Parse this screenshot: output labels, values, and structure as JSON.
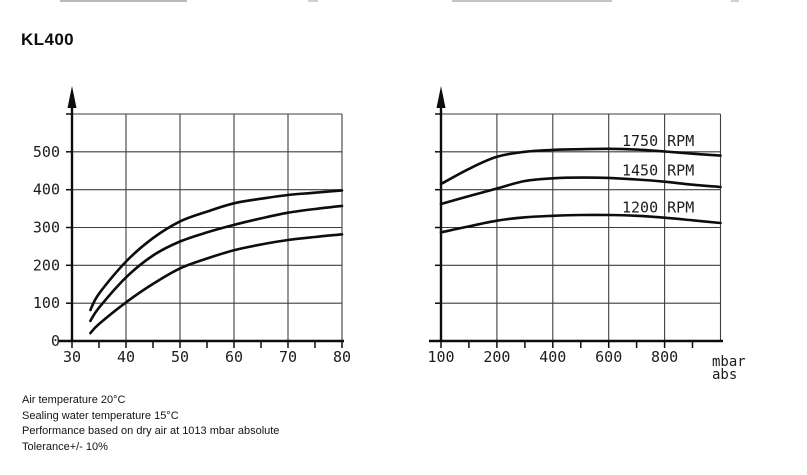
{
  "title": "KL400",
  "notes": [
    "Air temperature 20°C",
    "Sealing water temperature 15°C",
    "Performance based on dry air at 1013 mbar absolute",
    "Tolerance+/- 10%"
  ],
  "colors": {
    "background": "#ffffff",
    "curve": "#0d0d0d",
    "grid": "#3f3f3f",
    "axis": "#0d0d0d",
    "text": "#1c1c1c"
  },
  "chart_data": [
    {
      "id": "left-plot-capacity-vs-vacuum",
      "type": "line",
      "grid": true,
      "x_axis": {
        "scale": "linear",
        "range": [
          30,
          80
        ],
        "tick_labels": [
          "30",
          "40",
          "50",
          "60",
          "70",
          "80"
        ],
        "tick_values": [
          30,
          40,
          50,
          60,
          70,
          80
        ],
        "minor_tick_values": [
          35,
          45,
          55,
          65,
          75
        ],
        "gridline_values": [
          40,
          50,
          60,
          70,
          80
        ]
      },
      "y_axis": {
        "range": [
          0,
          600
        ],
        "tick_labels": [
          "0",
          "100",
          "200",
          "300",
          "400",
          "500"
        ],
        "tick_values": [
          0,
          100,
          200,
          300,
          400,
          500
        ],
        "gridline_values": [
          100,
          200,
          300,
          400,
          500,
          600
        ]
      },
      "series": [
        {
          "name": "upper-curve",
          "label": "",
          "points": [
            [
              33.4,
              82
            ],
            [
              35,
              125
            ],
            [
              40,
              210
            ],
            [
              45,
              272
            ],
            [
              50,
              316
            ],
            [
              55,
              342
            ],
            [
              60,
              364
            ],
            [
              65,
              376
            ],
            [
              70,
              386
            ],
            [
              75,
              392
            ],
            [
              80,
              398
            ]
          ]
        },
        {
          "name": "middle-curve",
          "label": "",
          "points": [
            [
              33.4,
              53
            ],
            [
              35,
              88
            ],
            [
              40,
              168
            ],
            [
              45,
              226
            ],
            [
              50,
              263
            ],
            [
              55,
              287
            ],
            [
              60,
              307
            ],
            [
              65,
              324
            ],
            [
              70,
              339
            ],
            [
              75,
              349
            ],
            [
              80,
              357
            ]
          ]
        },
        {
          "name": "lower-curve",
          "label": "",
          "points": [
            [
              33.4,
              21
            ],
            [
              35,
              45
            ],
            [
              40,
              102
            ],
            [
              45,
              151
            ],
            [
              50,
              192
            ],
            [
              55,
              218
            ],
            [
              60,
              240
            ],
            [
              65,
              255
            ],
            [
              70,
              267
            ],
            [
              75,
              275
            ],
            [
              80,
              282
            ]
          ]
        }
      ]
    },
    {
      "id": "right-plot-capacity-vs-absolute-pressure",
      "type": "line",
      "grid": true,
      "x_axis": {
        "scale": "compressed (100-200 full step, 200-1000 half step)",
        "range": [
          100,
          1000
        ],
        "tick_labels": [
          "100",
          "200",
          "400",
          "600",
          "800"
        ],
        "tick_values": [
          100,
          200,
          400,
          600,
          800
        ],
        "minor_tick_values": [
          150,
          300,
          500,
          700,
          900
        ],
        "gridline_values": [
          200,
          400,
          600,
          800,
          1000
        ],
        "unit_label_lines": [
          "mbar",
          "abs"
        ]
      },
      "y_axis": {
        "range": [
          0,
          600
        ],
        "tick_labels": [],
        "tick_values": [],
        "gridline_values": [
          100,
          200,
          300,
          400,
          500,
          600
        ]
      },
      "series": [
        {
          "name": "1750-rpm",
          "label": "1750 RPM",
          "points": [
            [
              100,
              415
            ],
            [
              150,
              455
            ],
            [
              200,
              487
            ],
            [
              300,
              500
            ],
            [
              400,
              505
            ],
            [
              500,
              507
            ],
            [
              600,
              508
            ],
            [
              700,
              506
            ],
            [
              800,
              501
            ],
            [
              900,
              495
            ],
            [
              1000,
              490
            ]
          ]
        },
        {
          "name": "1450-rpm",
          "label": "1450 RPM",
          "points": [
            [
              100,
              362
            ],
            [
              150,
              383
            ],
            [
              200,
              403
            ],
            [
              300,
              423
            ],
            [
              400,
              430
            ],
            [
              500,
              432
            ],
            [
              600,
              431
            ],
            [
              700,
              427
            ],
            [
              800,
              421
            ],
            [
              900,
              413
            ],
            [
              1000,
              407
            ]
          ]
        },
        {
          "name": "1200-rpm",
          "label": "1200 RPM",
          "points": [
            [
              100,
              287
            ],
            [
              150,
              303
            ],
            [
              200,
              318
            ],
            [
              300,
              327
            ],
            [
              400,
              331
            ],
            [
              500,
              333
            ],
            [
              600,
              333
            ],
            [
              700,
              331
            ],
            [
              800,
              326
            ],
            [
              900,
              319
            ],
            [
              1000,
              312
            ]
          ]
        }
      ]
    }
  ]
}
